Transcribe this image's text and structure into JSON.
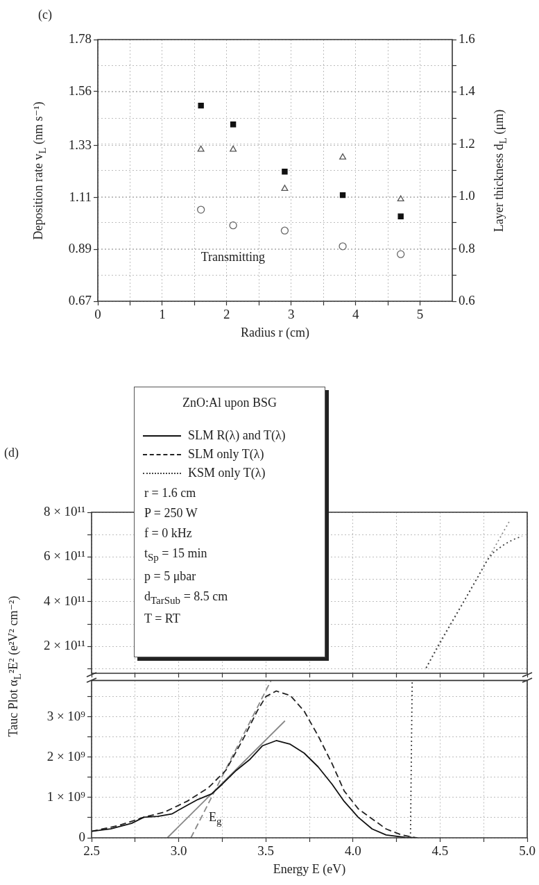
{
  "chart_data": [
    {
      "type": "scatter",
      "title": "(c)",
      "xlabel": "Radius r (cm)",
      "ylabel": "Deposition rate v$_{L}$ (nm s⁻¹)",
      "y2label": "Layer thickness d$_{L}$ (μm)",
      "x": [
        1.6,
        2.1,
        2.9,
        3.8,
        4.7
      ],
      "series": [
        {
          "color": "#111111",
          "marker": "square",
          "values": [
            1.5,
            1.42,
            1.22,
            1.12,
            1.03
          ]
        },
        {
          "color": "#555555",
          "marker": "triangle",
          "axis": "y2",
          "values": [
            1.18,
            1.18,
            1.03,
            1.15,
            0.99
          ]
        },
        {
          "name": "Transmitting",
          "color": "#666666",
          "marker": "circle",
          "axis": "y2",
          "values": [
            0.95,
            0.89,
            0.87,
            0.81,
            0.78
          ]
        }
      ],
      "xlim": [
        0,
        5.5
      ],
      "xticks": [
        0,
        {
          "value": 0.5,
          "label": null
        },
        1,
        {
          "value": 1.5,
          "label": null
        },
        2,
        {
          "value": 2.5,
          "label": null
        },
        3,
        {
          "value": 3.5,
          "label": null
        },
        4,
        {
          "value": 4.5,
          "label": null
        },
        5
      ],
      "ylim": [
        0.67,
        1.78
      ],
      "yticks": [
        0.67,
        0.89,
        1.11,
        1.33,
        1.56,
        1.78
      ],
      "y2lim": [
        0.6,
        1.6
      ],
      "y2ticks": [
        0.6,
        {
          "value": 0.7,
          "label": null
        },
        0.8,
        {
          "value": 0.9,
          "label": null
        },
        {
          "value": 1,
          "label": "1.0"
        },
        {
          "value": 1.1,
          "label": null
        },
        1.2,
        {
          "value": 1.3,
          "label": null
        },
        1.4,
        {
          "value": 1.5,
          "label": null
        },
        1.6
      ],
      "grid": true
    },
    {
      "type": "line",
      "title": "(d)",
      "marker": "none",
      "grid": true,
      "tick_labels": "y",
      "series": [
        {
          "color": "#444444",
          "line_style": "dotted",
          "x": [
            4.42,
            4.5,
            4.64,
            4.72,
            4.77,
            4.81,
            4.87,
            4.92,
            4.97
          ],
          "values": [
            104000000000.0,
            220000000000.0,
            406000000000.0,
            515000000000.0,
            585000000000.0,
            623000000000.0,
            657000000000.0,
            678000000000.0,
            693000000000.0
          ]
        },
        {
          "type": "line",
          "color": "#888888",
          "line_style": "dotted",
          "x": [
            4.42,
            4.9
          ],
          "values": [
            104000000000.0,
            763000000000.0
          ]
        }
      ],
      "xlim": [
        2.5,
        5.0
      ],
      "xticks": [
        {
          "value": 2.5,
          "label": null
        },
        {
          "value": 2.75,
          "label": null
        },
        {
          "value": 3,
          "label": null
        },
        {
          "value": 3.25,
          "label": null
        },
        {
          "value": 3.5,
          "label": null
        },
        {
          "value": 3.75,
          "label": null
        },
        {
          "value": 4,
          "label": null
        },
        {
          "value": 4.25,
          "label": null
        },
        {
          "value": 4.5,
          "label": null
        },
        {
          "value": 4.75,
          "label": null
        },
        {
          "value": 5,
          "label": null
        }
      ],
      "ylim": [
        80000000000.0,
        800000000000.0
      ],
      "yticks": [
        {
          "value": 100000000000.0,
          "label": null
        },
        {
          "value": 200000000000.0,
          "label": "2 × 10¹¹"
        },
        {
          "value": 300000000000.0,
          "label": null
        },
        {
          "value": 400000000000.0,
          "label": "4 × 10¹¹"
        },
        {
          "value": 500000000000.0,
          "label": null
        },
        {
          "value": 600000000000.0,
          "label": "6 × 10¹¹"
        },
        {
          "value": 700000000000.0,
          "label": null
        },
        {
          "value": 800000000000.0,
          "label": "8 × 10¹¹"
        }
      ]
    },
    {
      "type": "line",
      "xlabel": "Energy E (eV)",
      "ylabel": "Tauc Plot α$_{L}$²E² (e²V² cm⁻²)",
      "legend": "top left",
      "legend_title": "ZnO:Al upon BSG",
      "marker": "none",
      "grid": true,
      "series": [
        {
          "name": "SLM R(λ) and T(λ)",
          "color": "#111111",
          "line_style": "solid",
          "x": [
            2.5,
            2.61,
            2.73,
            2.8,
            2.88,
            2.96,
            3.05,
            3.11,
            3.19,
            3.25,
            3.33,
            3.41,
            3.48,
            3.56,
            3.64,
            3.72,
            3.8,
            3.88,
            3.95,
            4.03,
            4.11,
            4.19,
            4.3,
            4.37
          ],
          "values": [
            160000000.0,
            220000000.0,
            360000000.0,
            510000000.0,
            530000000.0,
            590000000.0,
            810000000.0,
            950000000.0,
            1090000000.0,
            1330000000.0,
            1670000000.0,
            1950000000.0,
            2280000000.0,
            2410000000.0,
            2320000000.0,
            2100000000.0,
            1760000000.0,
            1330000000.0,
            900000000.0,
            510000000.0,
            220000000.0,
            70000000.0,
            10000000.0,
            0
          ]
        },
        {
          "name": "SLM only T(λ)",
          "color": "#222222",
          "line_style": "dashed",
          "x": [
            2.5,
            2.66,
            2.8,
            2.92,
            3.05,
            3.17,
            3.27,
            3.37,
            3.45,
            3.5,
            3.56,
            3.64,
            3.72,
            3.8,
            3.88,
            3.95,
            4.03,
            4.11,
            4.19,
            4.28,
            4.36
          ],
          "values": [
            160000000.0,
            310000000.0,
            510000000.0,
            640000000.0,
            910000000.0,
            1240000000.0,
            1670000000.0,
            2450000000.0,
            3140000000.0,
            3500000000.0,
            3640000000.0,
            3530000000.0,
            3140000000.0,
            2530000000.0,
            1840000000.0,
            1160000000.0,
            720000000.0,
            470000000.0,
            220000000.0,
            70000000.0,
            0
          ]
        },
        {
          "name": "KSM only T(λ)",
          "color": "#444444",
          "line_style": "dotted",
          "x": [
            4.33,
            4.34
          ],
          "values": [
            0,
            3900000000.0
          ]
        },
        {
          "type": "line",
          "color": "#888888",
          "line_style": "solid",
          "x": [
            2.935,
            3.61
          ],
          "values": [
            0,
            2900000000.0
          ]
        },
        {
          "type": "line",
          "color": "#888888",
          "line_style": "dashed",
          "x": [
            3.07,
            3.53
          ],
          "values": [
            0,
            3900000000.0
          ]
        }
      ],
      "xlim": [
        2.5,
        5.0
      ],
      "xticks": [
        2.5,
        {
          "value": 2.75,
          "label": null
        },
        {
          "value": 3,
          "label": "3.0"
        },
        {
          "value": 3.25,
          "label": null
        },
        3.5,
        {
          "value": 3.75,
          "label": null
        },
        {
          "value": 4,
          "label": "4.0"
        },
        {
          "value": 4.25,
          "label": null
        },
        4.5,
        {
          "value": 4.75,
          "label": null
        },
        {
          "value": 5,
          "label": "5.0"
        }
      ],
      "ylim": [
        0,
        3900000000.0
      ],
      "yticks": [
        0,
        {
          "value": 500000000.0,
          "label": null
        },
        {
          "value": 1000000000.0,
          "label": "1 × 10⁹"
        },
        {
          "value": 1500000000.0,
          "label": null
        },
        {
          "value": 2000000000.0,
          "label": "2 × 10⁹"
        },
        {
          "value": 2500000000.0,
          "label": null
        },
        {
          "value": 3000000000.0,
          "label": "3 × 10⁹"
        },
        {
          "value": 3500000000.0,
          "label": null
        }
      ],
      "annotations": [
        "r = 1.6 cm",
        "P = 250 W",
        "f = 0 kHz",
        "t$_{Sp}$ = 15 min",
        "p = 5 μbar",
        "d$_{TarSub}$ = 8.5 cm",
        "T = RT",
        {
          "text": "E$_{g}$",
          "x": 3.21,
          "y": 1180000000.0
        }
      ]
    }
  ]
}
